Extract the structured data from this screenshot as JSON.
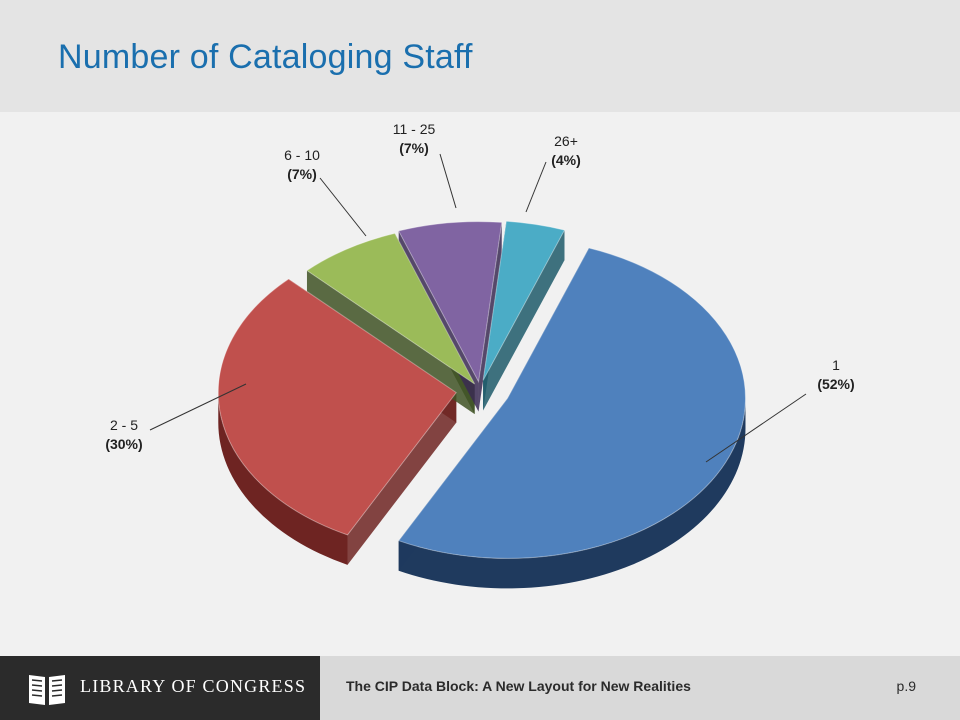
{
  "slide": {
    "title": "Number of Cataloging Staff"
  },
  "chart_data": {
    "type": "pie",
    "slices": [
      {
        "label": "1",
        "value": 52,
        "display": "(52%)",
        "color": "#4f81bd",
        "side": "#1f3a5e"
      },
      {
        "label": "2 - 5",
        "value": 30,
        "display": "(30%)",
        "color": "#c0504d",
        "side": "#6e2422"
      },
      {
        "label": "6 - 10",
        "value": 7,
        "display": "(7%)",
        "color": "#9bbb59",
        "side": "#3f5224"
      },
      {
        "label": "11 - 25",
        "value": 7,
        "display": "(7%)",
        "color": "#8064a2",
        "side": "#3a2a52"
      },
      {
        "label": "26+",
        "value": 4,
        "display": "(4%)",
        "color": "#4bacc6",
        "side": "#1f5a6a"
      }
    ],
    "style": "3d-exploded"
  },
  "footer": {
    "logo_text": "LIBRARY OF CONGRESS",
    "caption": "The CIP Data Block:  A New Layout for New Realities",
    "page": "p.9"
  }
}
